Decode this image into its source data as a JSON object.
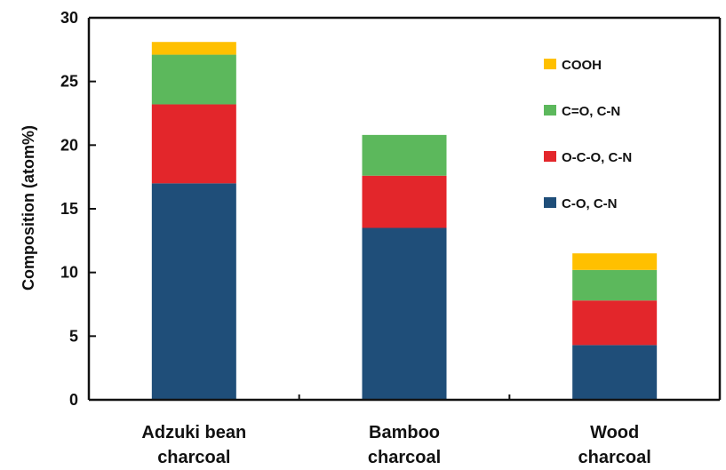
{
  "chart_data": {
    "type": "bar",
    "stacked": true,
    "title": "",
    "xlabel": "",
    "ylabel": "Composition (atom%)",
    "ylim": [
      0,
      30
    ],
    "yticks": [
      0,
      5,
      10,
      15,
      20,
      25,
      30
    ],
    "grid": false,
    "legend_position": "top-right",
    "categories": [
      [
        "Adzuki bean",
        "charcoal"
      ],
      [
        "Bamboo",
        "charcoal"
      ],
      [
        "Wood",
        "charcoal"
      ]
    ],
    "series": [
      {
        "name": "C-O, C-N",
        "color": "#1f4e79",
        "values": [
          17.0,
          13.5,
          4.3
        ]
      },
      {
        "name": "O-C-O, C-N",
        "color": "#e3262b",
        "values": [
          6.2,
          4.1,
          3.5
        ]
      },
      {
        "name": "C=O, C-N",
        "color": "#5cb85c",
        "values": [
          3.9,
          3.2,
          2.4
        ]
      },
      {
        "name": "COOH",
        "color": "#ffc000",
        "values": [
          1.0,
          0.0,
          1.3
        ]
      }
    ],
    "legend_order": [
      "COOH",
      "C=O, C-N",
      "O-C-O, C-N",
      "C-O, C-N"
    ]
  }
}
